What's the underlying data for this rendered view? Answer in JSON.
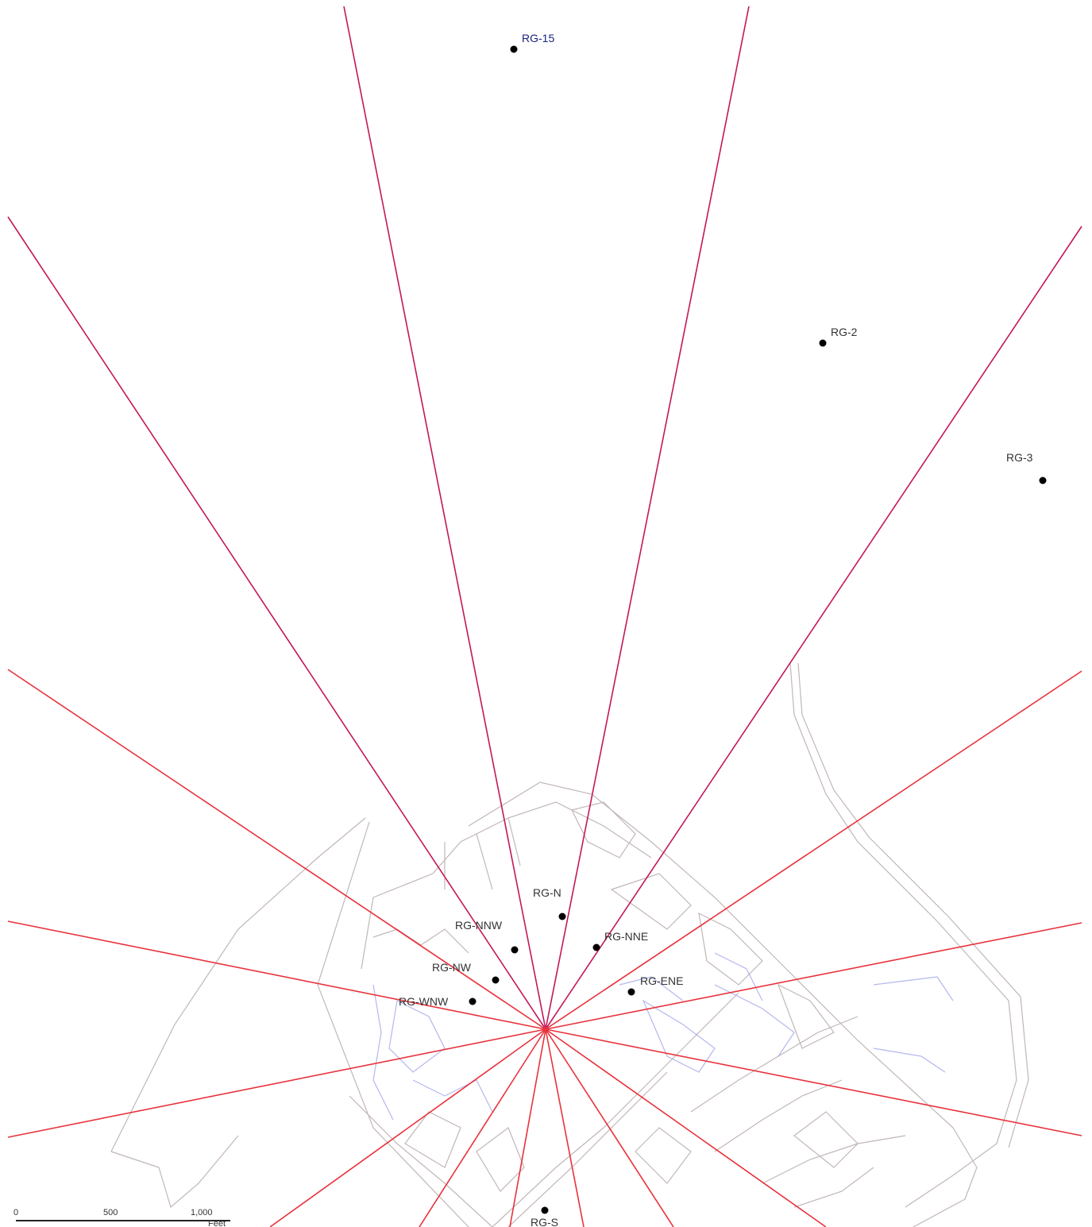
{
  "map": {
    "gauges": [
      {
        "id": "RG-15",
        "label": "RG-15",
        "label_color": "#1a237e"
      },
      {
        "id": "RG-2",
        "label": "RG-2",
        "label_color": "#333333"
      },
      {
        "id": "RG-3",
        "label": "RG-3",
        "label_color": "#333333"
      },
      {
        "id": "RG-N",
        "label": "RG-N",
        "label_color": "#333333"
      },
      {
        "id": "RG-NNW",
        "label": "RG-NNW",
        "label_color": "#333333"
      },
      {
        "id": "RG-NNE",
        "label": "RG-NNE",
        "label_color": "#333333"
      },
      {
        "id": "RG-NW",
        "label": "RG-NW",
        "label_color": "#333333"
      },
      {
        "id": "RG-ENE",
        "label": "RG-ENE",
        "label_color": "#333333"
      },
      {
        "id": "RG-WNW",
        "label": "RG-WNW",
        "label_color": "#333333"
      },
      {
        "id": "RG-S",
        "label": "RG-S",
        "label_color": "#333333"
      }
    ],
    "scale_bar": {
      "ticks": [
        "0",
        "500",
        "1,000"
      ],
      "unit": "Feet"
    },
    "colors": {
      "ray": "#e8323c",
      "ray_upper": "#c2185b",
      "site_plan_gray": "#a89c9c",
      "site_plan_blue": "#8f8fe0",
      "marker": "#000000"
    }
  }
}
